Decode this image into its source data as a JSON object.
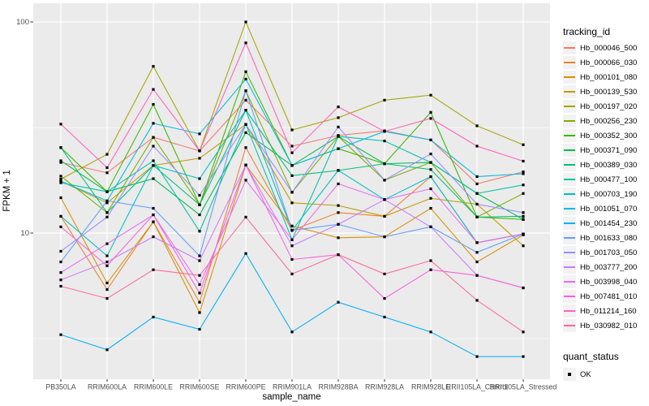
{
  "figure": {
    "y_axis_title": "FPKM + 1",
    "x_axis_title": "sample_name"
  },
  "legend": {
    "tracking_title": "tracking_id",
    "quant_title": "quant_status",
    "quant_ok_label": "OK",
    "quant_marker": "black-square"
  },
  "colors": {
    "panel_background": "#EBEBEB",
    "gridline": "#FFFFFF",
    "legend_key_background": "#F2F2F2",
    "tick_text": "#4D4D4D",
    "point": "#000000"
  },
  "chart_data": {
    "type": "line",
    "title": "",
    "xlabel": "sample_name",
    "ylabel": "FPKM + 1",
    "y_scale": "log10",
    "ylim": [
      2.1,
      121
    ],
    "y_ticks": [
      100,
      10
    ],
    "y_minor_gridlines": [
      31.6,
      3.16
    ],
    "grid": "on",
    "legend_position": "right",
    "point_marker": "black-square",
    "categories": [
      "PB350LA",
      "RRIM600LA",
      "RRIM600LE",
      "RRIM600SE",
      "RRIM600PE",
      "RRIM901LA",
      "RRIM928BA",
      "RRIM928LA",
      "RRIM928LE",
      "RRII105LA_Control",
      "RRII105LA_Stressed"
    ],
    "series": [
      {
        "name": "Hb_000046_500",
        "color": "#F8766D",
        "values": [
          21.6,
          19.3,
          28.4,
          24.5,
          42.6,
          25.8,
          29.0,
          30.5,
          27.6,
          17.1,
          19.5
        ]
      },
      {
        "name": "Hb_000066_030",
        "color": "#EA8331",
        "values": [
          12.0,
          5.4,
          11.3,
          4.7,
          25.4,
          10.3,
          12.5,
          12.0,
          18.5,
          9.0,
          9.9
        ]
      },
      {
        "name": "Hb_000101_080",
        "color": "#D89000",
        "values": [
          14.7,
          5.8,
          11.3,
          4.2,
          21.0,
          10.8,
          9.5,
          9.6,
          13.1,
          7.3,
          9.8
        ]
      },
      {
        "name": "Hb_000139_530",
        "color": "#C09B00",
        "values": [
          17.6,
          13.9,
          20.9,
          22.6,
          32.7,
          13.9,
          13.5,
          12.0,
          14.6,
          13.7,
          8.7
        ]
      },
      {
        "name": "Hb_000197_020",
        "color": "#A3A500",
        "values": [
          18.0,
          23.6,
          61.6,
          24.5,
          100.0,
          30.8,
          35.2,
          42.6,
          45.0,
          32.2,
          26.2
        ]
      },
      {
        "name": "Hb_000256_230",
        "color": "#7CAE00",
        "values": [
          18.6,
          12.5,
          28.4,
          13.6,
          47.2,
          15.6,
          28.7,
          17.8,
          21.6,
          11.9,
          15.4
        ]
      },
      {
        "name": "Hb_000352_300",
        "color": "#39B600",
        "values": [
          25.4,
          15.7,
          40.7,
          13.6,
          58.1,
          20.9,
          25.1,
          21.3,
          37.3,
          11.9,
          11.6
        ]
      },
      {
        "name": "Hb_000371_090",
        "color": "#00BB4E",
        "values": [
          22.0,
          15.7,
          18.1,
          12.2,
          29.9,
          20.9,
          28.7,
          21.3,
          21.6,
          15.4,
          11.6
        ]
      },
      {
        "name": "Hb_000389_030",
        "color": "#00BF7D",
        "values": [
          25.4,
          12.5,
          20.9,
          13.6,
          38.2,
          18.7,
          19.8,
          21.3,
          20.0,
          11.9,
          12.0
        ]
      },
      {
        "name": "Hb_000477_100",
        "color": "#00C1A3",
        "values": [
          17.3,
          15.7,
          22.0,
          10.2,
          32.7,
          9.3,
          28.7,
          27.3,
          21.6,
          15.4,
          16.9
        ]
      },
      {
        "name": "Hb_000703_190",
        "color": "#00BFC4",
        "values": [
          12.0,
          7.8,
          20.9,
          18.1,
          38.2,
          10.3,
          19.8,
          14.4,
          18.5,
          9.0,
          9.9
        ]
      },
      {
        "name": "Hb_001051_070",
        "color": "#00BAE0",
        "values": [
          17.6,
          14.2,
          33.1,
          29.5,
          53.6,
          20.9,
          25.1,
          30.3,
          27.6,
          18.5,
          19.1
        ]
      },
      {
        "name": "Hb_001454_230",
        "color": "#00B0F6",
        "values": [
          3.3,
          2.8,
          4.0,
          3.5,
          8.0,
          3.4,
          4.7,
          4.0,
          3.4,
          2.6,
          2.6
        ]
      },
      {
        "name": "Hb_001633_080",
        "color": "#619CFF",
        "values": [
          7.3,
          14.2,
          13.1,
          7.8,
          47.2,
          10.3,
          11.0,
          9.6,
          10.7,
          8.1,
          9.9
        ]
      },
      {
        "name": "Hb_001703_050",
        "color": "#9590FF",
        "values": [
          8.2,
          11.9,
          25.8,
          15.1,
          32.7,
          15.6,
          31.8,
          17.8,
          23.7,
          13.7,
          12.5
        ]
      },
      {
        "name": "Hb_003777_200",
        "color": "#C77CFF",
        "values": [
          6.0,
          7.3,
          9.6,
          7.4,
          21.0,
          8.7,
          11.0,
          14.4,
          10.7,
          6.3,
          5.5
        ]
      },
      {
        "name": "Hb_003998_040",
        "color": "#E76BF3",
        "values": [
          6.5,
          8.9,
          12.2,
          5.7,
          17.8,
          9.3,
          17.1,
          14.4,
          16.2,
          9.0,
          9.9
        ]
      },
      {
        "name": "Hb_007481_010",
        "color": "#FA62DB",
        "values": [
          10.7,
          7.0,
          12.2,
          5.2,
          21.0,
          7.5,
          7.9,
          4.9,
          6.7,
          6.3,
          5.5
        ]
      },
      {
        "name": "Hb_011214_160",
        "color": "#FF62BC",
        "values": [
          32.8,
          20.4,
          47.9,
          24.5,
          79.6,
          24.0,
          39.6,
          30.3,
          34.9,
          25.8,
          21.9
        ]
      },
      {
        "name": "Hb_030982_010",
        "color": "#FF6A98",
        "values": [
          5.6,
          4.9,
          6.7,
          6.3,
          11.9,
          6.4,
          7.9,
          6.4,
          7.4,
          4.8,
          3.4
        ]
      }
    ]
  }
}
